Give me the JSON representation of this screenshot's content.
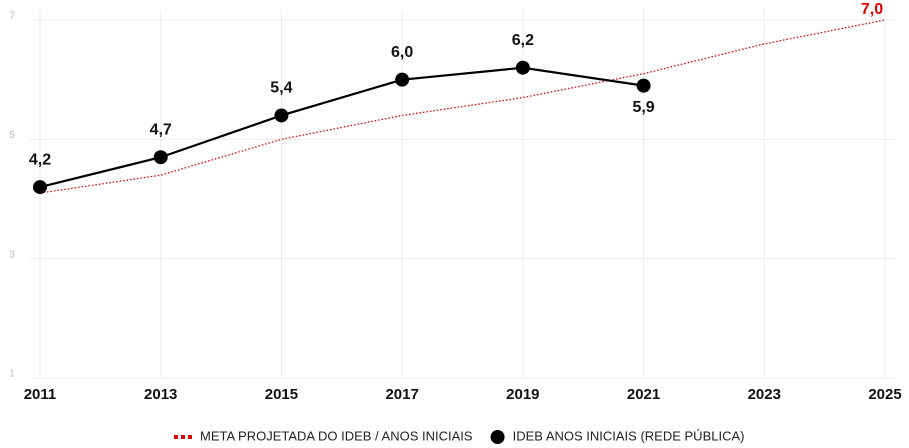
{
  "chart_data": {
    "type": "line",
    "categories": [
      "2011",
      "2013",
      "2015",
      "2017",
      "2019",
      "2021",
      "2023",
      "2025"
    ],
    "series": [
      {
        "name": "META PROJETADA DO IDEB / ANOS INICIAIS",
        "color": "#e00000",
        "style": "dotted",
        "values": [
          4.1,
          4.4,
          5.0,
          5.4,
          5.7,
          6.1,
          6.6,
          7.0
        ],
        "value_labels": [
          null,
          null,
          null,
          null,
          null,
          null,
          null,
          "7,0"
        ]
      },
      {
        "name": "IDEB ANOS INICIAIS (REDE PÚBLICA)",
        "color": "#000000",
        "style": "solid",
        "values": [
          4.2,
          4.7,
          5.4,
          6.0,
          6.2,
          5.9,
          null,
          null
        ],
        "value_labels": [
          "4,2",
          "4,7",
          "5,4",
          "6,0",
          "6,2",
          "5,9",
          null,
          null
        ]
      }
    ],
    "ylim": [
      1,
      7
    ],
    "yticks": [
      1,
      3,
      5,
      7
    ],
    "grid": true
  }
}
